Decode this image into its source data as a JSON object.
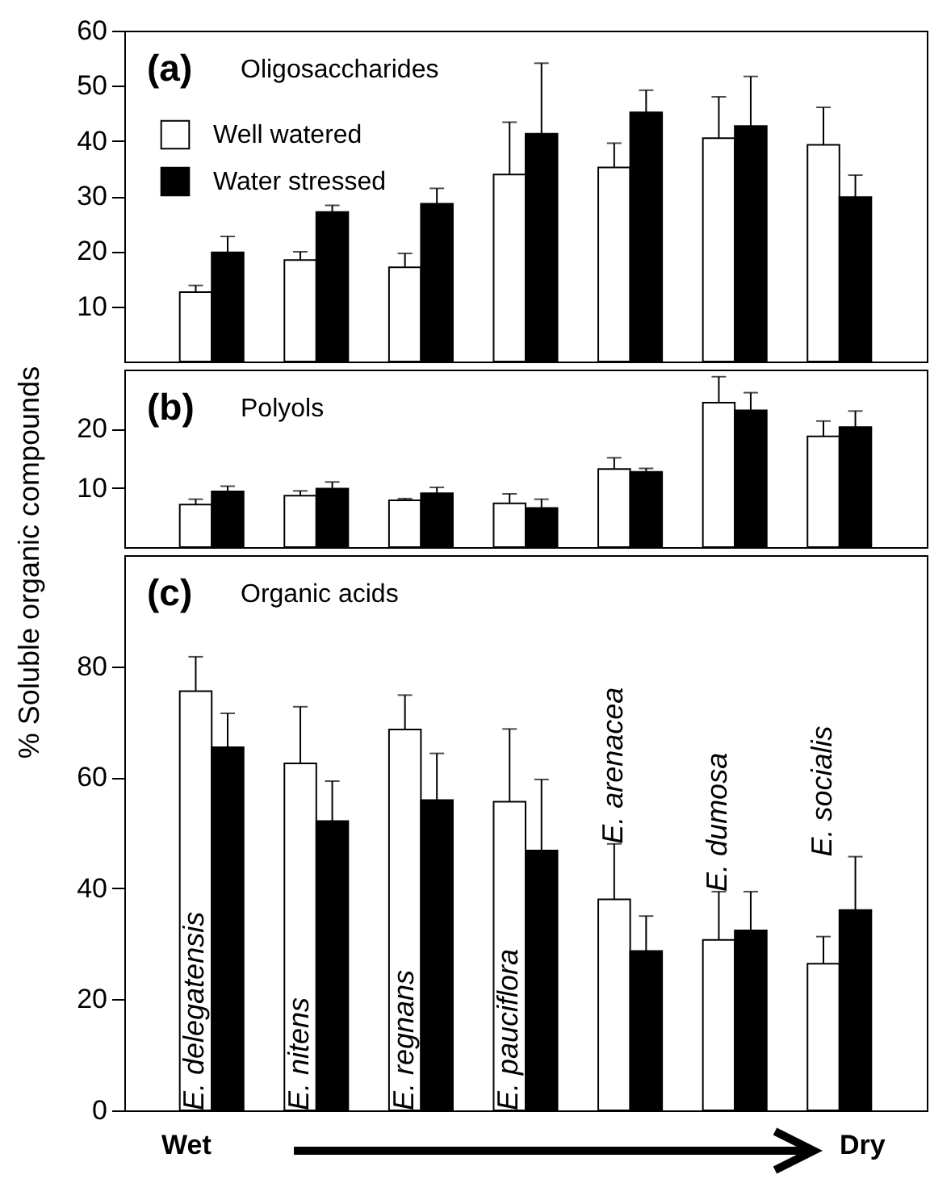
{
  "chart_data": [
    {
      "type": "bar",
      "title": "(a)",
      "subtitle": "Oligosaccharides",
      "categories": [
        null,
        null,
        null,
        null,
        null,
        null,
        null
      ],
      "series": [
        {
          "name": "Well watered",
          "color": "#ffffff",
          "values": [
            12.6,
            18.4,
            17.1,
            33.9,
            35.2,
            40.5,
            39.3
          ],
          "errors": [
            [
              12.6,
              13.8
            ],
            [
              18.4,
              19.9
            ],
            [
              17.1,
              19.6
            ],
            [
              33.9,
              43.4
            ],
            [
              35.2,
              39.6
            ],
            [
              40.5,
              48.0
            ],
            [
              39.3,
              46.1
            ]
          ]
        },
        {
          "name": "Water stressed",
          "color": "#000000",
          "values": [
            19.8,
            27.1,
            28.6,
            41.3,
            45.2,
            42.7,
            29.8
          ],
          "errors": [
            [
              19.8,
              22.7
            ],
            [
              27.1,
              28.3
            ],
            [
              28.6,
              31.4
            ],
            [
              41.3,
              54.1
            ],
            [
              45.2,
              49.2
            ],
            [
              42.7,
              51.7
            ],
            [
              29.8,
              33.8
            ]
          ]
        }
      ],
      "ylim": [
        0,
        60
      ],
      "yticks": [
        10,
        20,
        30,
        40,
        50,
        60
      ],
      "legend": "top left",
      "tick_labels": "y"
    },
    {
      "type": "bar",
      "title": "(b)",
      "subtitle": "Polyols",
      "ylabel": "% Soluble organic compounds",
      "categories": [
        null,
        null,
        null,
        null,
        null,
        null,
        null
      ],
      "series": [
        {
          "color": "#ffffff",
          "values": [
            7.2,
            8.7,
            7.9,
            7.4,
            13.2,
            24.4,
            18.7
          ],
          "errors": [
            [
              7.2,
              8.1
            ],
            [
              8.7,
              9.5
            ],
            [
              7.9,
              8.2
            ],
            [
              7.4,
              9.0
            ],
            [
              13.2,
              15.1
            ],
            [
              24.4,
              28.8
            ],
            [
              18.7,
              21.3
            ]
          ]
        },
        {
          "color": "#000000",
          "values": [
            9.4,
            9.9,
            9.1,
            6.6,
            12.7,
            23.1,
            20.3
          ],
          "errors": [
            [
              9.4,
              10.3
            ],
            [
              9.9,
              11.0
            ],
            [
              9.1,
              10.1
            ],
            [
              6.6,
              8.1
            ],
            [
              12.7,
              13.3
            ],
            [
              23.1,
              26.1
            ],
            [
              20.3,
              23.0
            ]
          ]
        }
      ],
      "ylim": [
        0,
        30
      ],
      "yticks": [
        10,
        20
      ],
      "tick_labels": "y"
    },
    {
      "type": "bar",
      "title": "(c)",
      "subtitle": "Organic acids",
      "categories": [
        "E. delegatensis",
        "E. nitens",
        "E. regnans",
        "E. pauciflora",
        "E. arenacea",
        "E. dumosa",
        "E. socialis"
      ],
      "series": [
        {
          "color": "#ffffff",
          "values": [
            75.5,
            62.5,
            68.6,
            55.6,
            38.0,
            30.7,
            26.4
          ],
          "errors": [
            [
              75.5,
              81.7
            ],
            [
              62.5,
              72.7
            ],
            [
              68.6,
              74.8
            ],
            [
              55.6,
              68.7
            ],
            [
              38.0,
              48.0
            ],
            [
              30.7,
              39.4
            ],
            [
              26.4,
              31.3
            ]
          ]
        },
        {
          "color": "#000000",
          "values": [
            65.4,
            52.1,
            55.9,
            46.8,
            28.7,
            32.4,
            36.1
          ],
          "errors": [
            [
              65.4,
              71.5
            ],
            [
              52.1,
              59.3
            ],
            [
              55.9,
              64.3
            ],
            [
              46.8,
              59.6
            ],
            [
              28.7,
              35.0
            ],
            [
              32.4,
              39.4
            ],
            [
              36.1,
              45.7
            ]
          ]
        }
      ],
      "ylim": [
        0,
        100
      ],
      "yticks": [
        0,
        20,
        40,
        60,
        80
      ],
      "annotations": [
        "Wet",
        "Dry"
      ]
    }
  ]
}
